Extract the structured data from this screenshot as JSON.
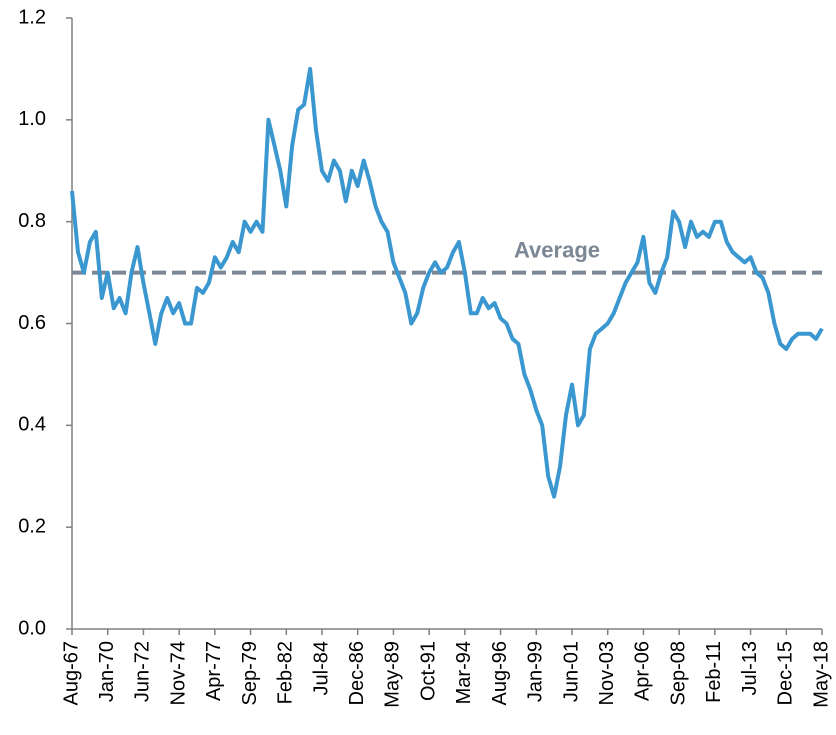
{
  "chart_data": {
    "type": "line",
    "categories": [
      "Aug-67",
      null,
      null,
      null,
      null,
      null,
      "Jan-70",
      null,
      null,
      null,
      null,
      null,
      "Jun-72",
      null,
      null,
      null,
      null,
      null,
      "Nov-74",
      null,
      null,
      null,
      null,
      null,
      "Apr-77",
      null,
      null,
      null,
      null,
      null,
      "Sep-79",
      null,
      null,
      null,
      null,
      null,
      "Feb-82",
      null,
      null,
      null,
      null,
      null,
      "Jul-84",
      null,
      null,
      null,
      null,
      null,
      "Dec-86",
      null,
      null,
      null,
      null,
      null,
      "May-89",
      null,
      null,
      null,
      null,
      null,
      "Oct-91",
      null,
      null,
      null,
      null,
      null,
      "Mar-94",
      null,
      null,
      null,
      null,
      null,
      "Aug-96",
      null,
      null,
      null,
      null,
      null,
      "Jan-99",
      null,
      null,
      null,
      null,
      null,
      "Jun-01",
      null,
      null,
      null,
      null,
      null,
      "Nov-03",
      null,
      null,
      null,
      null,
      null,
      "Apr-06",
      null,
      null,
      null,
      null,
      null,
      "Sep-08",
      null,
      null,
      null,
      null,
      null,
      "Feb-11",
      null,
      null,
      null,
      null,
      null,
      "Jul-13",
      null,
      null,
      null,
      null,
      null,
      "Dec-15",
      null,
      null,
      null,
      null,
      null,
      "May-18"
    ],
    "values": [
      0.86,
      0.74,
      0.7,
      0.76,
      0.78,
      0.65,
      0.7,
      0.63,
      0.65,
      0.62,
      0.7,
      0.75,
      0.68,
      0.62,
      0.56,
      0.62,
      0.65,
      0.62,
      0.64,
      0.6,
      0.6,
      0.67,
      0.66,
      0.68,
      0.73,
      0.71,
      0.73,
      0.76,
      0.74,
      0.8,
      0.78,
      0.8,
      0.78,
      1.0,
      0.95,
      0.9,
      0.83,
      0.95,
      1.02,
      1.03,
      1.1,
      0.98,
      0.9,
      0.88,
      0.92,
      0.9,
      0.84,
      0.9,
      0.87,
      0.92,
      0.88,
      0.83,
      0.8,
      0.78,
      0.72,
      0.69,
      0.66,
      0.6,
      0.62,
      0.67,
      0.7,
      0.72,
      0.7,
      0.71,
      0.74,
      0.76,
      0.7,
      0.62,
      0.62,
      0.65,
      0.63,
      0.64,
      0.61,
      0.6,
      0.57,
      0.56,
      0.5,
      0.47,
      0.43,
      0.4,
      0.3,
      0.26,
      0.32,
      0.42,
      0.48,
      0.4,
      0.42,
      0.55,
      0.58,
      0.59,
      0.6,
      0.62,
      0.65,
      0.68,
      0.7,
      0.72,
      0.77,
      0.68,
      0.66,
      0.7,
      0.73,
      0.82,
      0.8,
      0.75,
      0.8,
      0.77,
      0.78,
      0.77,
      0.8,
      0.8,
      0.76,
      0.74,
      0.73,
      0.72,
      0.73,
      0.7,
      0.69,
      0.66,
      0.6,
      0.56,
      0.55,
      0.57,
      0.58,
      0.58,
      0.58,
      0.57,
      0.59
    ],
    "color": "#3a97cf",
    "average": {
      "label": "Average",
      "value": 0.7,
      "color": "#7b8794"
    },
    "ylim": [
      0,
      1.2
    ],
    "yticks": [
      {
        "value": 0,
        "label": "0.0"
      },
      {
        "value": 0.2,
        "label": "0.2"
      },
      {
        "value": 0.4,
        "label": "0.4"
      },
      {
        "value": 0.6,
        "label": "0.6"
      },
      {
        "value": 0.8,
        "label": "0.8"
      },
      {
        "value": 1.0,
        "label": "1.0"
      },
      {
        "value": 1.2,
        "label": "1.2"
      }
    ],
    "grid": false
  }
}
